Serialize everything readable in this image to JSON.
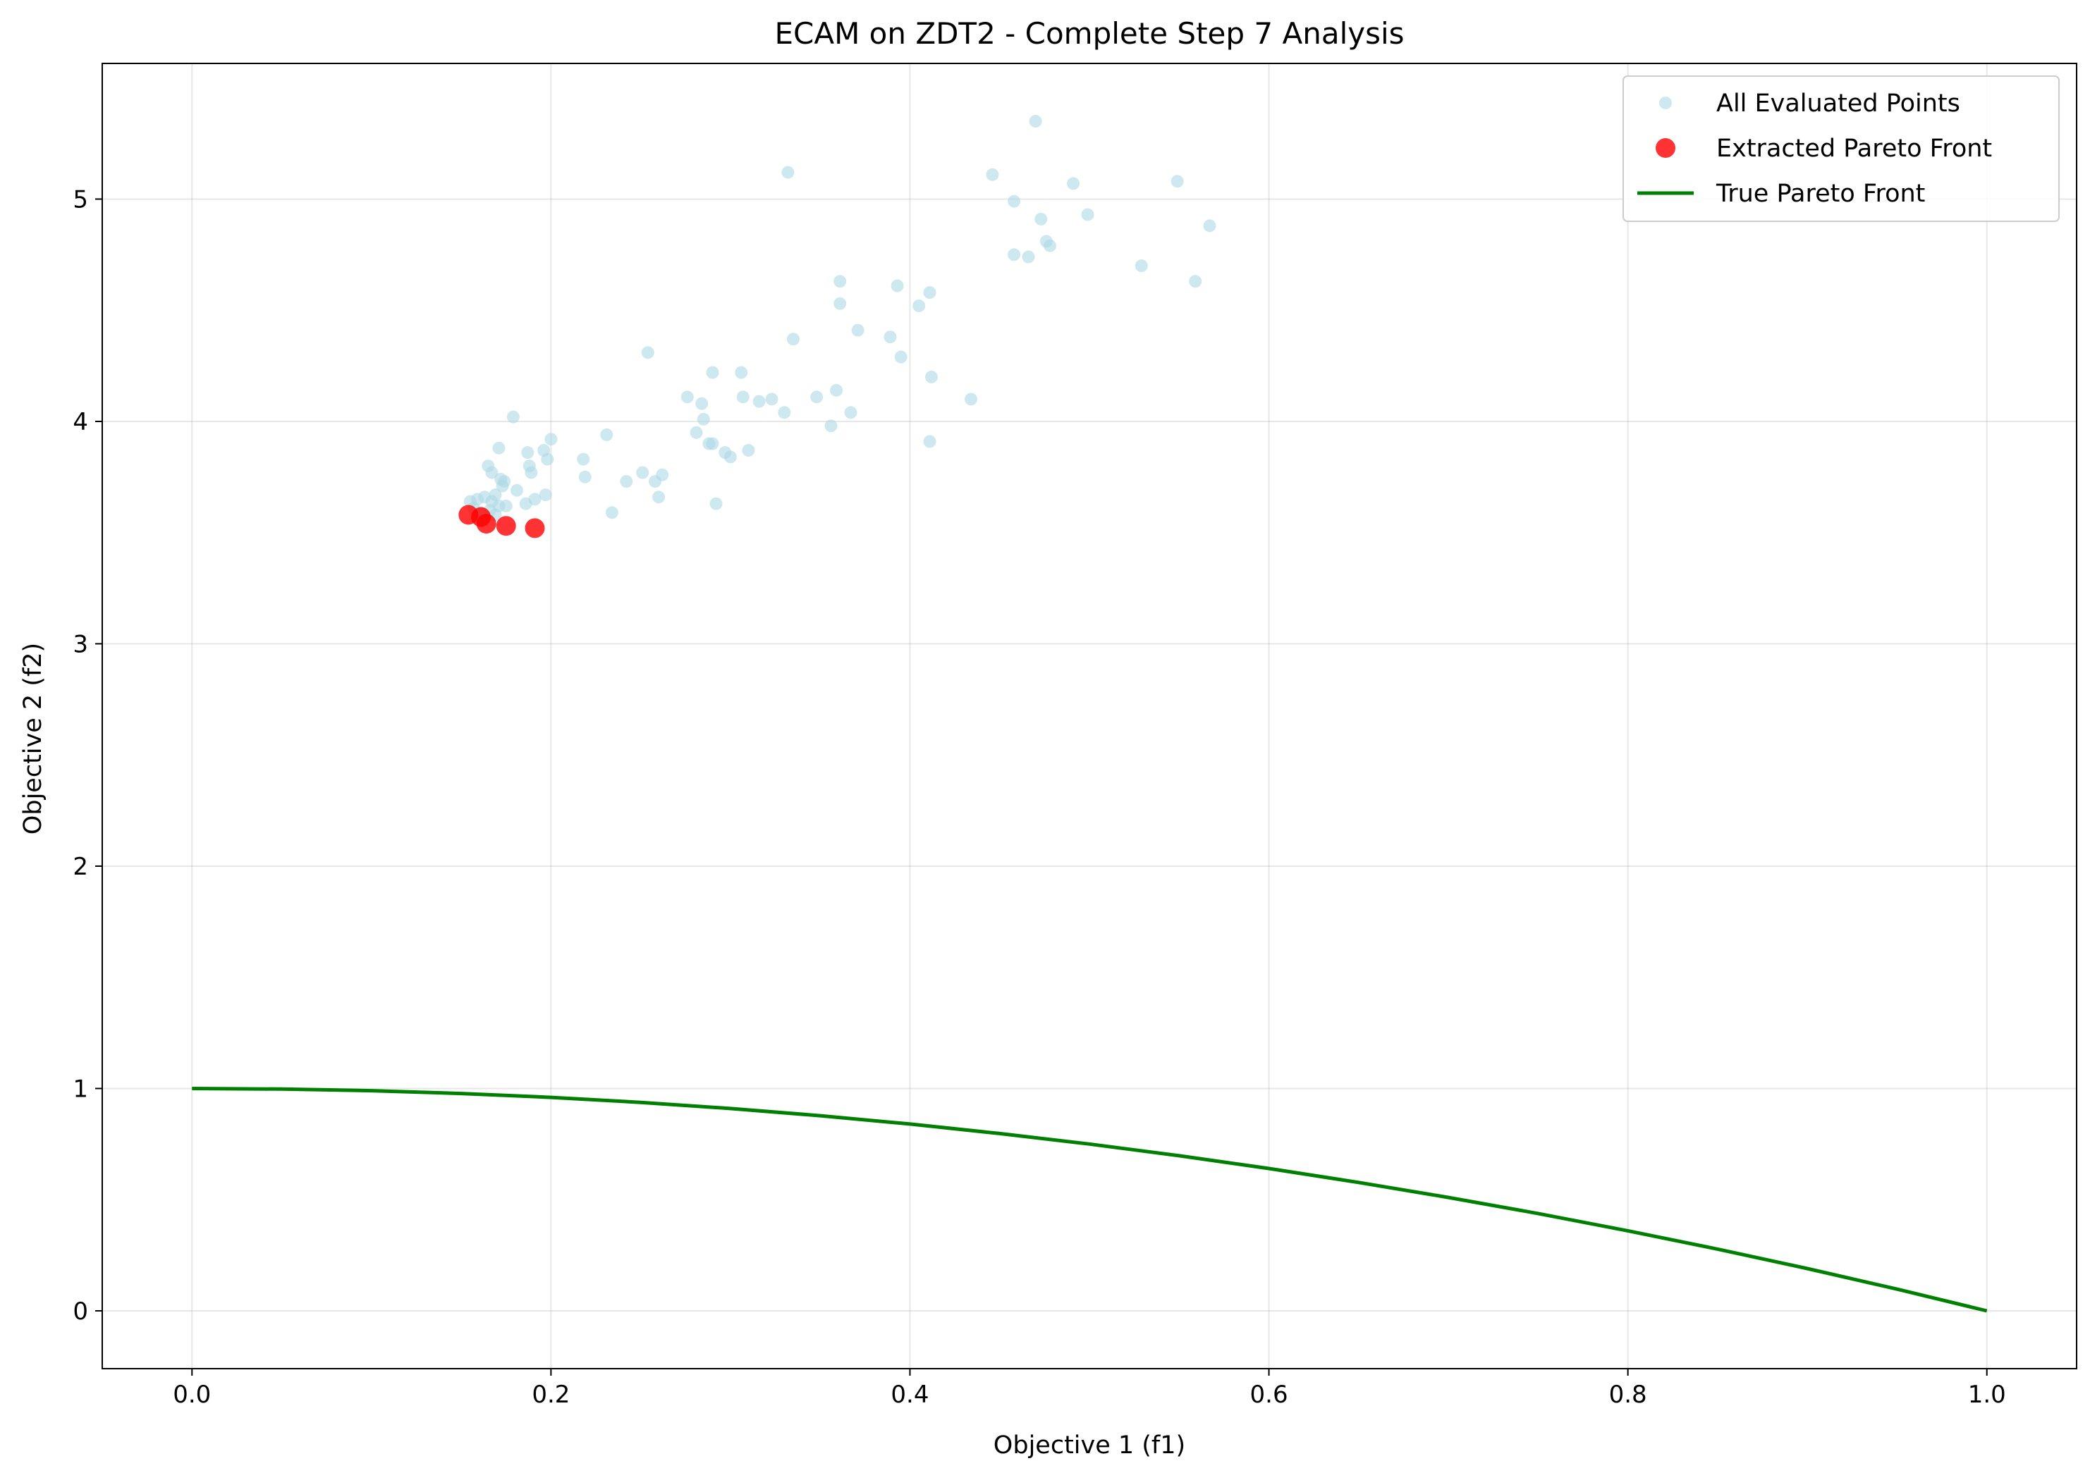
{
  "chart_data": {
    "type": "scatter",
    "title": "ECAM on ZDT2 - Complete Step 7 Analysis",
    "xlabel": "Objective 1 (f1)",
    "ylabel": "Objective 2 (f2)",
    "xlim": [
      -0.05,
      1.05
    ],
    "ylim": [
      -0.26,
      5.61
    ],
    "xticks": [
      0.0,
      0.2,
      0.4,
      0.6,
      0.8,
      1.0
    ],
    "xtick_labels": [
      "0.0",
      "0.2",
      "0.4",
      "0.6",
      "0.8",
      "1.0"
    ],
    "yticks": [
      0,
      1,
      2,
      3,
      4,
      5
    ],
    "ytick_labels": [
      "0",
      "1",
      "2",
      "3",
      "4",
      "5"
    ],
    "grid": true,
    "legend_position": "top-right",
    "series": [
      {
        "name": "All Evaluated Points",
        "kind": "scatter",
        "color": "#add8e6",
        "opacity": 0.6,
        "points": [
          [
            0.47,
            5.35
          ],
          [
            0.332,
            5.12
          ],
          [
            0.446,
            5.11
          ],
          [
            0.491,
            5.07
          ],
          [
            0.549,
            5.08
          ],
          [
            0.458,
            4.99
          ],
          [
            0.473,
            4.91
          ],
          [
            0.499,
            4.93
          ],
          [
            0.567,
            4.88
          ],
          [
            0.476,
            4.81
          ],
          [
            0.478,
            4.79
          ],
          [
            0.458,
            4.75
          ],
          [
            0.466,
            4.74
          ],
          [
            0.529,
            4.7
          ],
          [
            0.559,
            4.63
          ],
          [
            0.361,
            4.63
          ],
          [
            0.393,
            4.61
          ],
          [
            0.411,
            4.58
          ],
          [
            0.361,
            4.53
          ],
          [
            0.405,
            4.52
          ],
          [
            0.371,
            4.41
          ],
          [
            0.389,
            4.38
          ],
          [
            0.335,
            4.37
          ],
          [
            0.254,
            4.31
          ],
          [
            0.395,
            4.29
          ],
          [
            0.29,
            4.22
          ],
          [
            0.306,
            4.22
          ],
          [
            0.412,
            4.2
          ],
          [
            0.359,
            4.14
          ],
          [
            0.276,
            4.11
          ],
          [
            0.307,
            4.11
          ],
          [
            0.348,
            4.11
          ],
          [
            0.323,
            4.1
          ],
          [
            0.434,
            4.1
          ],
          [
            0.284,
            4.08
          ],
          [
            0.316,
            4.09
          ],
          [
            0.33,
            4.04
          ],
          [
            0.367,
            4.04
          ],
          [
            0.179,
            4.02
          ],
          [
            0.285,
            4.01
          ],
          [
            0.356,
            3.98
          ],
          [
            0.281,
            3.95
          ],
          [
            0.231,
            3.94
          ],
          [
            0.2,
            3.92
          ],
          [
            0.411,
            3.91
          ],
          [
            0.288,
            3.9
          ],
          [
            0.29,
            3.9
          ],
          [
            0.171,
            3.88
          ],
          [
            0.31,
            3.87
          ],
          [
            0.297,
            3.86
          ],
          [
            0.187,
            3.86
          ],
          [
            0.196,
            3.87
          ],
          [
            0.3,
            3.84
          ],
          [
            0.218,
            3.83
          ],
          [
            0.198,
            3.83
          ],
          [
            0.165,
            3.8
          ],
          [
            0.188,
            3.8
          ],
          [
            0.189,
            3.77
          ],
          [
            0.167,
            3.77
          ],
          [
            0.251,
            3.77
          ],
          [
            0.262,
            3.76
          ],
          [
            0.219,
            3.75
          ],
          [
            0.172,
            3.74
          ],
          [
            0.174,
            3.73
          ],
          [
            0.258,
            3.73
          ],
          [
            0.242,
            3.73
          ],
          [
            0.173,
            3.71
          ],
          [
            0.181,
            3.69
          ],
          [
            0.169,
            3.67
          ],
          [
            0.197,
            3.67
          ],
          [
            0.159,
            3.65
          ],
          [
            0.163,
            3.66
          ],
          [
            0.191,
            3.65
          ],
          [
            0.26,
            3.66
          ],
          [
            0.167,
            3.64
          ],
          [
            0.155,
            3.64
          ],
          [
            0.186,
            3.63
          ],
          [
            0.292,
            3.63
          ],
          [
            0.175,
            3.62
          ],
          [
            0.171,
            3.62
          ],
          [
            0.157,
            3.61
          ],
          [
            0.166,
            3.6
          ],
          [
            0.234,
            3.59
          ],
          [
            0.161,
            3.59
          ],
          [
            0.169,
            3.58
          ]
        ]
      },
      {
        "name": "Extracted Pareto Front",
        "kind": "scatter",
        "color": "#ff0000",
        "opacity": 0.8,
        "points": [
          [
            0.154,
            3.58
          ],
          [
            0.161,
            3.57
          ],
          [
            0.164,
            3.54
          ],
          [
            0.175,
            3.53
          ],
          [
            0.191,
            3.52
          ]
        ]
      },
      {
        "name": "True Pareto Front",
        "kind": "line",
        "color": "#008000",
        "function": "f2 = 1 - f1^2",
        "x": [
          0.0,
          0.05,
          0.1,
          0.15,
          0.2,
          0.25,
          0.3,
          0.35,
          0.4,
          0.45,
          0.5,
          0.55,
          0.6,
          0.65,
          0.7,
          0.75,
          0.8,
          0.85,
          0.9,
          0.95,
          1.0
        ],
        "y": [
          1.0,
          0.9975,
          0.99,
          0.9775,
          0.96,
          0.9375,
          0.91,
          0.8775,
          0.84,
          0.7975,
          0.75,
          0.6975,
          0.64,
          0.5775,
          0.51,
          0.4375,
          0.36,
          0.2775,
          0.19,
          0.0975,
          0.0
        ]
      }
    ]
  }
}
